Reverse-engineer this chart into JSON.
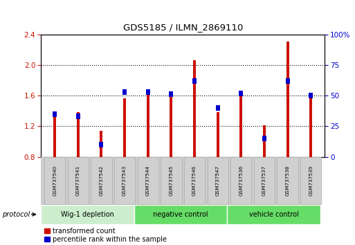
{
  "title": "GDS5185 / ILMN_2869110",
  "samples": [
    "GSM737540",
    "GSM737541",
    "GSM737542",
    "GSM737543",
    "GSM737544",
    "GSM737545",
    "GSM737546",
    "GSM737547",
    "GSM737536",
    "GSM737537",
    "GSM737538",
    "GSM737539"
  ],
  "transformed_count": [
    1.38,
    1.38,
    1.14,
    1.56,
    1.68,
    1.58,
    2.06,
    1.38,
    1.64,
    1.21,
    2.31,
    1.58
  ],
  "percentile_rank": [
    35,
    33,
    10,
    53,
    53,
    51,
    62,
    40,
    52,
    15,
    62,
    50
  ],
  "groups": [
    {
      "label": "Wig-1 depletion",
      "start": 0,
      "end": 4,
      "color": "#c8f0b0"
    },
    {
      "label": "negative control",
      "start": 4,
      "end": 8,
      "color": "#7de87d"
    },
    {
      "label": "vehicle control",
      "start": 8,
      "end": 12,
      "color": "#7de87d"
    }
  ],
  "ylim_left": [
    0.8,
    2.4
  ],
  "ylim_right": [
    0,
    100
  ],
  "yticks_left": [
    0.8,
    1.2,
    1.6,
    2.0,
    2.4
  ],
  "yticks_right": [
    0,
    25,
    50,
    75,
    100
  ],
  "bar_color_red": "#cc1100",
  "bar_color_blue": "#0000cc",
  "bar_width": 0.12,
  "background_color": "#ffffff",
  "protocol_label": "protocol",
  "legend_red": "transformed count",
  "legend_blue": "percentile rank within the sample",
  "group_border_color": "#000000",
  "sample_box_color": "#cccccc",
  "sample_box_border": "#888888"
}
